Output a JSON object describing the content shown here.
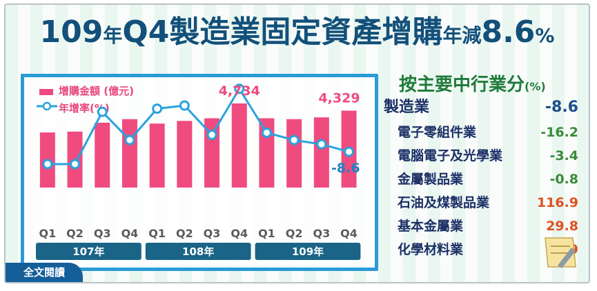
{
  "title": {
    "part1": "109",
    "part2": "年",
    "part3": "Q4製造業固定資產增購",
    "part4": "年減",
    "part5": "8.6",
    "part6": "%"
  },
  "legend": {
    "bar_label": "增購金額 (億元)",
    "line_label": "年增率(%)"
  },
  "chart_data": {
    "type": "bar+line",
    "categories": [
      "Q1",
      "Q2",
      "Q3",
      "Q4",
      "Q1",
      "Q2",
      "Q3",
      "Q4",
      "Q1",
      "Q2",
      "Q3",
      "Q4"
    ],
    "year_groups": [
      {
        "label": "107年",
        "span": 4
      },
      {
        "label": "108年",
        "span": 4
      },
      {
        "label": "109年",
        "span": 4
      }
    ],
    "series": [
      {
        "name": "增購金額 (億元)",
        "kind": "bar",
        "color": "#ef4b7f",
        "values": [
          3100,
          3150,
          3650,
          3850,
          3600,
          3750,
          3900,
          4734,
          3900,
          3850,
          3950,
          4329
        ]
      },
      {
        "name": "年增率(%)",
        "kind": "line",
        "color": "#2aa3dc",
        "values": [
          -14.5,
          -14.5,
          10.5,
          -3,
          12,
          13.5,
          -0.5,
          21.5,
          0.5,
          -3,
          -5,
          -8.6
        ]
      }
    ],
    "data_labels": [
      {
        "index": 7,
        "series": 0,
        "text": "4,734"
      },
      {
        "index": 11,
        "series": 0,
        "text": "4,329"
      },
      {
        "index": 11,
        "series": 1,
        "text": "-8.6"
      }
    ],
    "bar_ylim": [
      0,
      5000
    ],
    "line_ylim": [
      -30,
      30
    ]
  },
  "breakdown": {
    "title": "按主要中行業分",
    "unit": "(%)",
    "main": {
      "label": "製造業",
      "value": "-8.6"
    },
    "items": [
      {
        "label": "電子零組件業",
        "value": "-16.2",
        "color": "#3a8a3a"
      },
      {
        "label": "電腦電子及光學業",
        "value": "-3.4",
        "color": "#3a8a3a"
      },
      {
        "label": "金屬製品業",
        "value": "-0.8",
        "color": "#3a8a3a"
      },
      {
        "label": "石油及煤製品業",
        "value": "116.9",
        "color": "#e1501f"
      },
      {
        "label": "基本金屬業",
        "value": "29.8",
        "color": "#e1501f"
      },
      {
        "label": "化學材料業",
        "value": "7.9",
        "color": "#e1501f"
      }
    ],
    "main_color": "#1b4f8c",
    "label_color": "#1b2f66"
  },
  "badge": {
    "label": "全文閱讀"
  }
}
